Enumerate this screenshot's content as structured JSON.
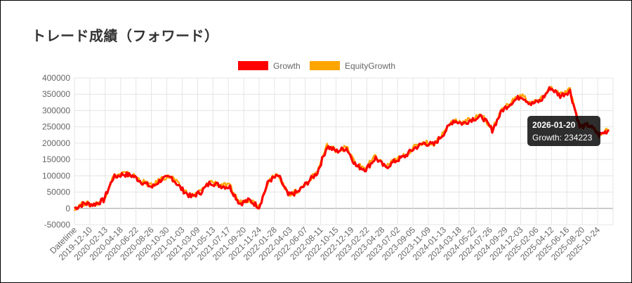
{
  "page": {
    "title": "トレード成績（フォワード）"
  },
  "chart_data": {
    "type": "line",
    "title": "",
    "xlabel": "",
    "ylabel": "",
    "ylim": [
      -50000,
      400000
    ],
    "y_ticks": [
      400000,
      350000,
      300000,
      250000,
      200000,
      150000,
      100000,
      50000,
      0,
      -50000
    ],
    "x_tick_labels": [
      "Datetime",
      "2019-12-10",
      "2020-02-13",
      "2020-04-18",
      "2020-06-22",
      "2020-08-26",
      "2020-10-30",
      "2021-01-03",
      "2021-03-09",
      "2021-05-13",
      "2021-07-17",
      "2021-09-20",
      "2021-11-24",
      "2022-01-28",
      "2022-04-03",
      "2022-06-07",
      "2022-08-11",
      "2022-10-15",
      "2022-12-19",
      "2023-02-22",
      "2023-04-28",
      "2023-07-02",
      "2023-09-05",
      "2023-11-09",
      "2024-01-13",
      "2024-03-18",
      "2024-05-22",
      "2024-07-26",
      "2024-09-29",
      "2024-12-03",
      "2025-02-06",
      "2025-04-12",
      "2025-06-16",
      "2025-08-20",
      "2025-10-24"
    ],
    "legend": {
      "placement": "top",
      "entries": [
        "Growth",
        "EquityGrowth"
      ]
    },
    "grid": true,
    "series": [
      {
        "name": "Growth",
        "color": "#ff0000",
        "values": [
          0,
          15000,
          12000,
          25000,
          95000,
          105000,
          100000,
          80000,
          65000,
          90000,
          95000,
          60000,
          35000,
          50000,
          80000,
          70000,
          65000,
          15000,
          25000,
          5000,
          85000,
          100000,
          40000,
          50000,
          80000,
          110000,
          190000,
          175000,
          185000,
          130000,
          120000,
          155000,
          125000,
          145000,
          160000,
          185000,
          200000,
          195000,
          230000,
          270000,
          260000,
          275000,
          280000,
          240000,
          300000,
          325000,
          345000,
          320000,
          330000,
          370000,
          345000,
          360000,
          250000,
          255000,
          225000,
          240000
        ]
      },
      {
        "name": "EquityGrowth",
        "color": "#ffa500",
        "values": [
          0,
          16000,
          11000,
          27000,
          98000,
          108000,
          102000,
          83000,
          68000,
          93000,
          98000,
          63000,
          38000,
          53000,
          83000,
          73000,
          68000,
          18000,
          28000,
          8000,
          88000,
          103000,
          43000,
          53000,
          83000,
          113000,
          193000,
          178000,
          188000,
          133000,
          125000,
          160000,
          128000,
          148000,
          163000,
          188000,
          203000,
          198000,
          233000,
          273000,
          263000,
          278000,
          283000,
          243000,
          303000,
          328000,
          348000,
          323000,
          333000,
          373000,
          348000,
          363000,
          253000,
          258000,
          228000,
          243000
        ]
      }
    ],
    "tooltip": {
      "date": "2026-01-20",
      "text": "Growth: 234223"
    }
  }
}
